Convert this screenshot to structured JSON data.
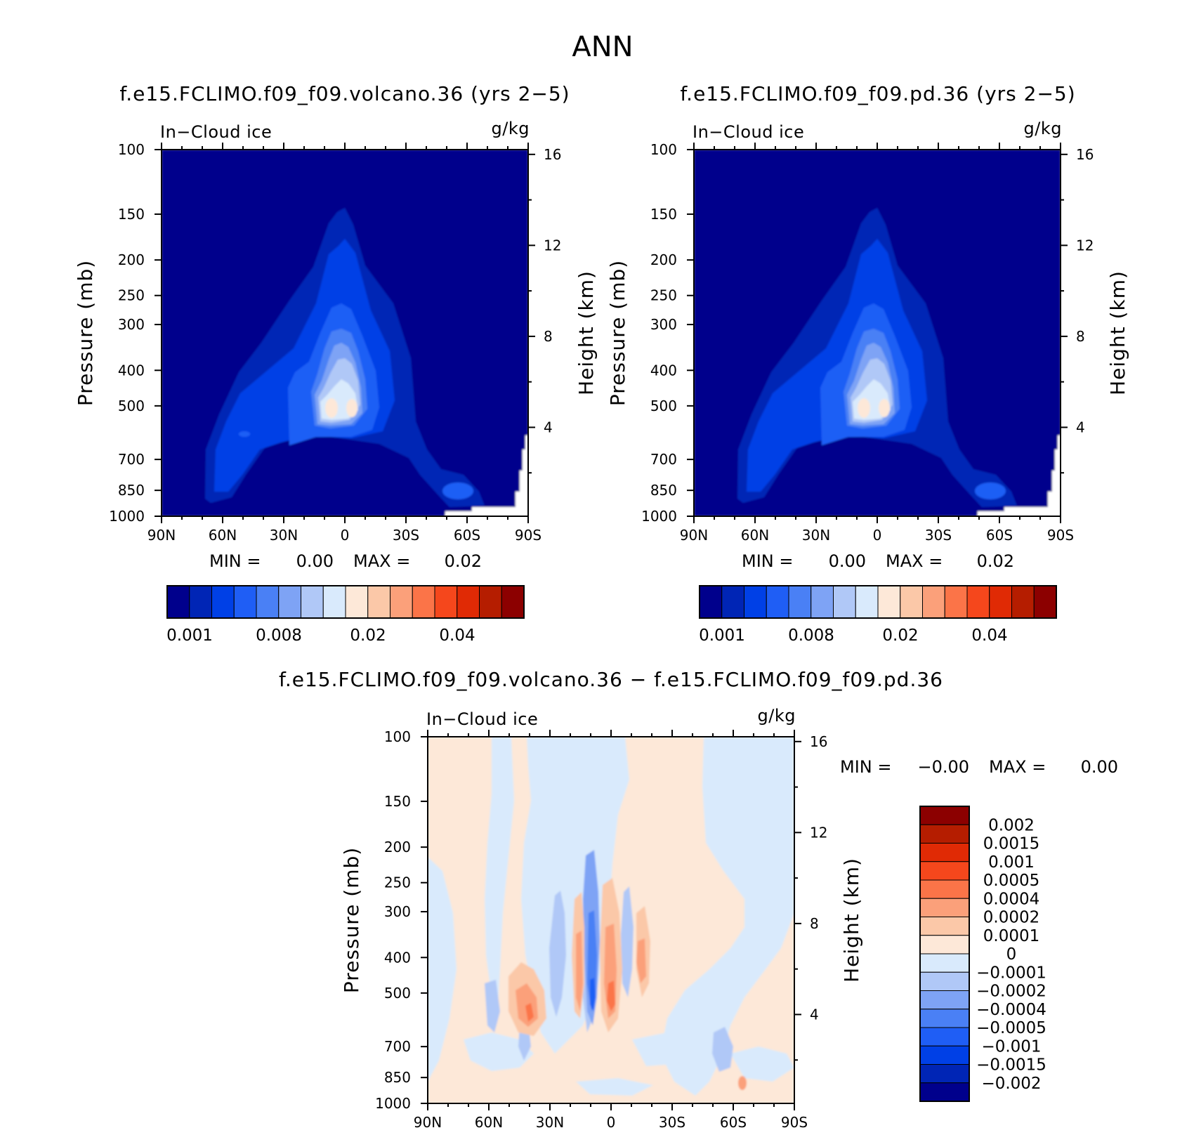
{
  "figure": {
    "title": "ANN",
    "variable_label": "In−Cloud ice",
    "units_label": "g/kg"
  },
  "chart_data": [
    {
      "type": "contour",
      "title": "f.e15.FCLIMO.f09_f09.volcano.36 (yrs 2−5)",
      "variable": "In−Cloud ice",
      "units": "g/kg",
      "ylabel": "Pressure (mb)",
      "ylabel_right": "Height (km)",
      "x_ticks": [
        "90N",
        "60N",
        "30N",
        "0",
        "30S",
        "60S",
        "90S"
      ],
      "y_ticks": [
        "100",
        "150",
        "200",
        "250",
        "300",
        "400",
        "500",
        "700",
        "850",
        "1000"
      ],
      "y_right_ticks": [
        "16",
        "12",
        "8",
        "4"
      ],
      "min_label": "MIN =",
      "min_value": "0.00",
      "max_label": "MAX =",
      "max_value": "0.02",
      "colorbar_levels": [
        0.001,
        0.002,
        0.004,
        0.006,
        0.008,
        0.01,
        0.012,
        0.015,
        0.02,
        0.025,
        0.03,
        0.035,
        0.04,
        0.045,
        0.05,
        0.055
      ],
      "colorbar_labels": [
        "0.001",
        "0.008",
        "0.02",
        "0.04"
      ],
      "colors": [
        "#00008c",
        "#0025b5",
        "#0040e6",
        "#1f5ef5",
        "#4a80f5",
        "#7ea3f5",
        "#b0c8f7",
        "#d9eafc",
        "#fde8d8",
        "#fbc8a8",
        "#fba07a",
        "#fb7448",
        "#f5471c",
        "#e02a05",
        "#b51d00",
        "#8c0000"
      ]
    },
    {
      "type": "contour",
      "title": "f.e15.FCLIMO.f09_f09.pd.36 (yrs 2−5)",
      "variable": "In−Cloud ice",
      "units": "g/kg",
      "ylabel": "Pressure (mb)",
      "ylabel_right": "Height (km)",
      "x_ticks": [
        "90N",
        "60N",
        "30N",
        "0",
        "30S",
        "60S",
        "90S"
      ],
      "y_ticks": [
        "100",
        "150",
        "200",
        "250",
        "300",
        "400",
        "500",
        "700",
        "850",
        "1000"
      ],
      "y_right_ticks": [
        "16",
        "12",
        "8",
        "4"
      ],
      "min_label": "MIN =",
      "min_value": "0.00",
      "max_label": "MAX =",
      "max_value": "0.02",
      "colorbar_levels": [
        0.001,
        0.002,
        0.004,
        0.006,
        0.008,
        0.01,
        0.012,
        0.015,
        0.02,
        0.025,
        0.03,
        0.035,
        0.04,
        0.045,
        0.05,
        0.055
      ],
      "colorbar_labels": [
        "0.001",
        "0.008",
        "0.02",
        "0.04"
      ],
      "colors": [
        "#00008c",
        "#0025b5",
        "#0040e6",
        "#1f5ef5",
        "#4a80f5",
        "#7ea3f5",
        "#b0c8f7",
        "#d9eafc",
        "#fde8d8",
        "#fbc8a8",
        "#fba07a",
        "#fb7448",
        "#f5471c",
        "#e02a05",
        "#b51d00",
        "#8c0000"
      ]
    },
    {
      "type": "contour",
      "title": "f.e15.FCLIMO.f09_f09.volcano.36 − f.e15.FCLIMO.f09_f09.pd.36",
      "variable": "In−Cloud ice",
      "units": "g/kg",
      "ylabel": "Pressure (mb)",
      "ylabel_right": "Height (km)",
      "x_ticks": [
        "90N",
        "60N",
        "30N",
        "0",
        "30S",
        "60S",
        "90S"
      ],
      "y_ticks": [
        "100",
        "150",
        "200",
        "250",
        "300",
        "400",
        "500",
        "700",
        "850",
        "1000"
      ],
      "y_right_ticks": [
        "16",
        "12",
        "8",
        "4"
      ],
      "min_label": "MIN =",
      "min_value": "−0.00",
      "max_label": "MAX =",
      "max_value": "0.00",
      "colorbar_labels": [
        "0.002",
        "0.0015",
        "0.001",
        "0.0005",
        "0.0004",
        "0.0002",
        "0.0001",
        "0",
        "−0.0001",
        "−0.0002",
        "−0.0004",
        "−0.0005",
        "−0.001",
        "−0.0015",
        "−0.002"
      ],
      "colors": [
        "#8c0000",
        "#b51d00",
        "#e02a05",
        "#f5471c",
        "#fb7448",
        "#fba07a",
        "#fbc8a8",
        "#fde8d8",
        "#d9eafc",
        "#b0c8f7",
        "#7ea3f5",
        "#4a80f5",
        "#1f5ef5",
        "#0040e6",
        "#0025b5",
        "#00008c"
      ]
    }
  ]
}
